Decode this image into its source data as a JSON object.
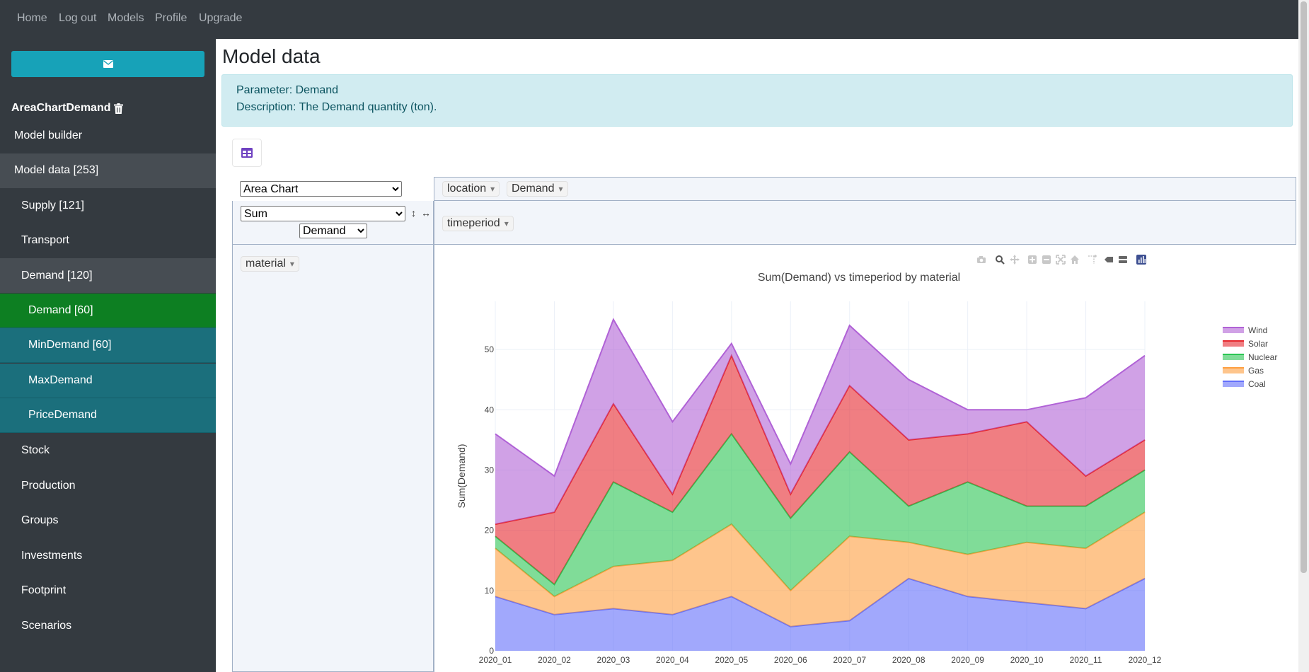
{
  "nav": {
    "links": [
      {
        "id": "home",
        "label": "Home"
      },
      {
        "id": "logout",
        "label": "Log out"
      },
      {
        "id": "models",
        "label": "Models"
      },
      {
        "id": "profile",
        "label": "Profile"
      },
      {
        "id": "upgrade",
        "label": "Upgrade"
      }
    ]
  },
  "sidebar": {
    "mail_icon": "envelope-icon",
    "model_name": "AreaChartDemand",
    "delete_icon": "trash-icon",
    "items": [
      {
        "label": "Model builder",
        "level": 0,
        "active": false
      },
      {
        "label": "Model data [253]",
        "level": 0,
        "active": true
      },
      {
        "label": "Supply [121]",
        "level": 1,
        "active": false
      },
      {
        "label": "Transport",
        "level": 1,
        "active": false
      },
      {
        "label": "Demand [120]",
        "level": 1,
        "active": true
      },
      {
        "label": "Demand [60]",
        "level": 2,
        "active": true
      },
      {
        "label": "MinDemand [60]",
        "level": 2,
        "active": false
      },
      {
        "label": "MaxDemand",
        "level": 2,
        "active": false
      },
      {
        "label": "PriceDemand",
        "level": 2,
        "active": false
      },
      {
        "label": "Stock",
        "level": 1,
        "active": false
      },
      {
        "label": "Production",
        "level": 1,
        "active": false
      },
      {
        "label": "Groups",
        "level": 1,
        "active": false
      },
      {
        "label": "Investments",
        "level": 1,
        "active": false
      },
      {
        "label": "Footprint",
        "level": 1,
        "active": false
      },
      {
        "label": "Scenarios",
        "level": 1,
        "active": false
      }
    ]
  },
  "main": {
    "title": "Model data",
    "info": {
      "parameter": "Parameter: Demand",
      "description": "Description: The Demand quantity (ton)."
    },
    "table_icon": "table-icon"
  },
  "pivot": {
    "renderer": "Area Chart",
    "aggregator": "Sum",
    "value_field": "Demand",
    "sort_rows_icon": "↕",
    "sort_cols_icon": "↔",
    "col_fields": [
      "location",
      "Demand"
    ],
    "row_fields": [
      "timeperiod"
    ],
    "unused_fields": [
      "material"
    ]
  },
  "modebar": [
    "camera-icon",
    "zoom-icon",
    "pan-icon",
    "zoom-in-icon",
    "zoom-out-icon",
    "autoscale-icon",
    "reset-axes-icon",
    "spike-lines-icon",
    "hover-closest-icon",
    "hover-compare-icon",
    "plotly-logo-icon"
  ],
  "chart_data": {
    "type": "area",
    "stacked": true,
    "title": "Sum(Demand) vs timeperiod by material",
    "xlabel": "",
    "ylabel": "Sum(Demand)",
    "ylim": [
      0,
      58
    ],
    "yticks": [
      0,
      10,
      20,
      30,
      40,
      50
    ],
    "categories": [
      "2020_01",
      "2020_02",
      "2020_03",
      "2020_04",
      "2020_05",
      "2020_06",
      "2020_07",
      "2020_08",
      "2020_09",
      "2020_10",
      "2020_11",
      "2020_12"
    ],
    "legend_position": "top-right",
    "grid": true,
    "series": [
      {
        "name": "Coal",
        "color": "#636efa",
        "values": [
          9,
          6,
          7,
          6,
          9,
          4,
          5,
          12,
          9,
          8,
          7,
          12
        ]
      },
      {
        "name": "Gas",
        "color": "#fe9f40",
        "values": [
          8,
          3,
          7,
          9,
          12,
          6,
          14,
          6,
          7,
          10,
          10,
          11
        ]
      },
      {
        "name": "Nuclear",
        "color": "#2bc553",
        "values": [
          2,
          2,
          14,
          8,
          15,
          12,
          14,
          6,
          12,
          6,
          7,
          7
        ]
      },
      {
        "name": "Solar",
        "color": "#e6282e",
        "values": [
          2,
          12,
          13,
          3,
          13,
          4,
          11,
          11,
          8,
          14,
          5,
          5
        ]
      },
      {
        "name": "Wind",
        "color": "#b062d6",
        "values": [
          15,
          6,
          14,
          12,
          2,
          5,
          10,
          10,
          4,
          2,
          13,
          14
        ]
      }
    ]
  }
}
